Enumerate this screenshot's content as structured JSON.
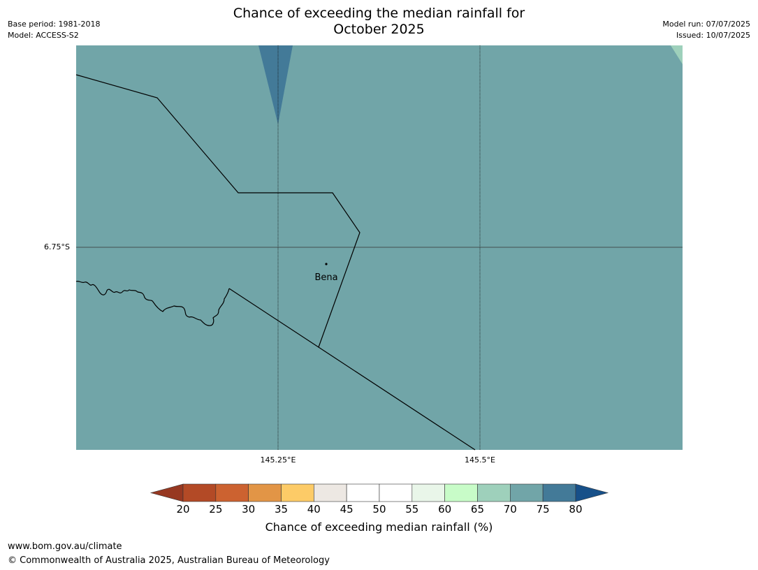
{
  "header": {
    "title_line1": "Chance of exceeding the median rainfall for",
    "title_line2": "October 2025",
    "base_period": "Base period: 1981-2018",
    "model": "Model: ACCESS-S2",
    "model_run": "Model run: 07/07/2025",
    "issued": "Issued: 10/07/2025"
  },
  "map": {
    "gridlines": {
      "latitude": "6.75°S",
      "longitudes": [
        "145.25°E",
        "145.5°E"
      ]
    },
    "place": {
      "name": "Bena"
    },
    "fill_color": "#71a5a8",
    "high_color": "#437a98",
    "edge_color": "#9ed0bb"
  },
  "colorbar": {
    "label": "Chance of exceeding median rainfall (%)",
    "ticks": [
      "20",
      "25",
      "30",
      "35",
      "40",
      "45",
      "50",
      "55",
      "60",
      "65",
      "70",
      "75",
      "80"
    ],
    "colors": [
      "#973821",
      "#b34a26",
      "#cc6230",
      "#e29546",
      "#fdcb67",
      "#ede8e3",
      "#ffffff",
      "#ffffff",
      "#e9f6e9",
      "#c8fcc8",
      "#9ed0bb",
      "#71a5a8",
      "#437a98",
      "#175089"
    ]
  },
  "footer": {
    "url": "www.bom.gov.au/climate",
    "copyright": "© Commonwealth of Australia 2025, Australian Bureau of Meteorology"
  }
}
